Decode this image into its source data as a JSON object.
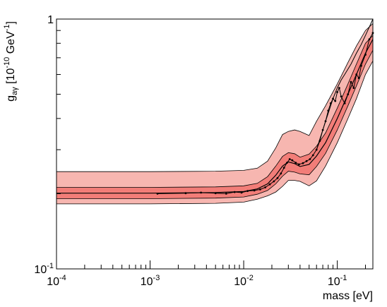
{
  "chart_data": {
    "type": "line",
    "xlabel": "mass [eV]",
    "ylabel_main": "g",
    "ylabel_sub": "aγ",
    "ylabel_rest": " [10",
    "ylabel_exp": "-10",
    "ylabel_unit": " GeV",
    "ylabel_unit_exp": "-1",
    "ylabel_close": "]",
    "x_scale": "log",
    "y_scale": "log",
    "xlim": [
      0.0001,
      0.24
    ],
    "ylim": [
      0.1,
      1
    ],
    "x_ticks": [
      {
        "value": 0.0001,
        "base": "10",
        "exp": "-4"
      },
      {
        "value": 0.001,
        "base": "10",
        "exp": "-3"
      },
      {
        "value": 0.01,
        "base": "10",
        "exp": "-2"
      },
      {
        "value": 0.1,
        "base": "10",
        "exp": "-1"
      }
    ],
    "y_ticks": [
      {
        "value": 0.1,
        "base": "10",
        "exp": "-1"
      },
      {
        "value": 1,
        "base": "1",
        "exp": ""
      }
    ],
    "colors": {
      "band_2sigma": "#f7b6b0",
      "band_1sigma": "#f27d78",
      "median": "#000000",
      "observed": "#000000"
    },
    "expected_median": {
      "x": [
        0.0001,
        0.001,
        0.005,
        0.01,
        0.014,
        0.018,
        0.022,
        0.026,
        0.03,
        0.035,
        0.04,
        0.05,
        0.06,
        0.075,
        0.1,
        0.13,
        0.16,
        0.2,
        0.24
      ],
      "y": [
        0.201,
        0.201,
        0.202,
        0.204,
        0.209,
        0.219,
        0.237,
        0.258,
        0.268,
        0.264,
        0.257,
        0.262,
        0.283,
        0.32,
        0.4,
        0.5,
        0.6,
        0.73,
        0.83
      ]
    },
    "band_1sigma": {
      "x": [
        0.0001,
        0.001,
        0.005,
        0.01,
        0.014,
        0.018,
        0.022,
        0.026,
        0.03,
        0.035,
        0.04,
        0.05,
        0.06,
        0.075,
        0.1,
        0.13,
        0.16,
        0.2,
        0.24
      ],
      "lower": [
        0.191,
        0.191,
        0.192,
        0.194,
        0.199,
        0.206,
        0.219,
        0.235,
        0.246,
        0.244,
        0.24,
        0.238,
        0.257,
        0.29,
        0.36,
        0.45,
        0.54,
        0.66,
        0.75
      ],
      "upper": [
        0.212,
        0.212,
        0.213,
        0.215,
        0.22,
        0.234,
        0.258,
        0.282,
        0.292,
        0.289,
        0.28,
        0.288,
        0.31,
        0.35,
        0.44,
        0.55,
        0.66,
        0.8,
        0.86
      ]
    },
    "band_2sigma": {
      "x": [
        0.0001,
        0.001,
        0.005,
        0.01,
        0.014,
        0.018,
        0.022,
        0.026,
        0.03,
        0.035,
        0.04,
        0.05,
        0.06,
        0.075,
        0.1,
        0.13,
        0.16,
        0.2,
        0.24
      ],
      "lower": [
        0.182,
        0.182,
        0.183,
        0.185,
        0.19,
        0.196,
        0.203,
        0.214,
        0.226,
        0.226,
        0.224,
        0.215,
        0.225,
        0.258,
        0.32,
        0.4,
        0.48,
        0.6,
        0.68
      ],
      "upper": [
        0.245,
        0.245,
        0.246,
        0.248,
        0.253,
        0.27,
        0.305,
        0.345,
        0.355,
        0.36,
        0.355,
        0.342,
        0.39,
        0.45,
        0.55,
        0.67,
        0.78,
        0.9,
        0.96
      ]
    },
    "observed": {
      "x": [
        0.0012,
        0.0024,
        0.0035,
        0.005,
        0.0065,
        0.008,
        0.0095,
        0.011,
        0.013,
        0.015,
        0.017,
        0.019,
        0.021,
        0.023,
        0.025,
        0.027,
        0.029,
        0.031,
        0.033,
        0.036,
        0.039,
        0.043,
        0.047,
        0.051,
        0.055,
        0.06,
        0.065,
        0.07,
        0.075,
        0.08,
        0.085,
        0.09,
        0.095,
        0.1,
        0.105,
        0.11,
        0.12,
        0.13,
        0.14,
        0.15,
        0.16,
        0.17,
        0.18,
        0.2,
        0.22,
        0.24
      ],
      "y": [
        0.2,
        0.201,
        0.202,
        0.201,
        0.2,
        0.203,
        0.202,
        0.205,
        0.206,
        0.208,
        0.212,
        0.218,
        0.224,
        0.231,
        0.241,
        0.254,
        0.266,
        0.275,
        0.272,
        0.266,
        0.262,
        0.265,
        0.27,
        0.275,
        0.285,
        0.3,
        0.325,
        0.36,
        0.39,
        0.43,
        0.46,
        0.48,
        0.47,
        0.51,
        0.53,
        0.49,
        0.46,
        0.5,
        0.56,
        0.53,
        0.6,
        0.58,
        0.65,
        0.72,
        0.83,
        0.88
      ]
    },
    "upper_curve": {
      "x": [
        0.06,
        0.065,
        0.07,
        0.075,
        0.08,
        0.09,
        0.1,
        0.11,
        0.12,
        0.14,
        0.16,
        0.18,
        0.2,
        0.22,
        0.24
      ],
      "y": [
        0.3,
        0.33,
        0.36,
        0.39,
        0.42,
        0.48,
        0.53,
        0.57,
        0.6,
        0.66,
        0.73,
        0.79,
        0.86,
        0.93,
        1.0
      ]
    }
  }
}
